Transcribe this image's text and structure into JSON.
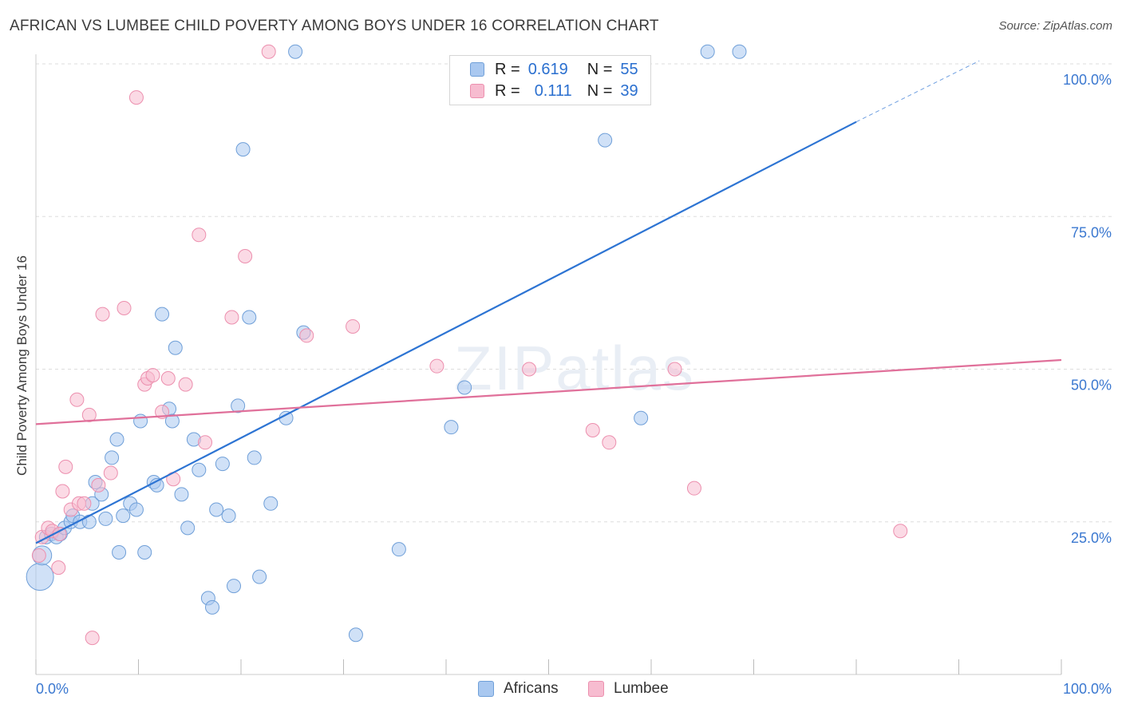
{
  "title": "AFRICAN VS LUMBEE CHILD POVERTY AMONG BOYS UNDER 16 CORRELATION CHART",
  "source": "Source: ZipAtlas.com",
  "watermark": "ZIPatlas",
  "legend_top": {
    "rows": [
      {
        "r_label": "R =",
        "r_value": "0.619",
        "n_label": "N =",
        "n_value": "55"
      },
      {
        "r_label": "R =",
        "r_value": "0.111",
        "n_label": "N =",
        "n_value": "39"
      }
    ]
  },
  "colors": {
    "africans_fill": "#a9c8f0",
    "africans_stroke": "#6f9fd8",
    "africans_line": "#2d74d3",
    "lumbee_fill": "#f7bcd0",
    "lumbee_stroke": "#ec8fae",
    "lumbee_line": "#e0709a",
    "tick_label": "#3b78d0",
    "grid": "#dddddd"
  },
  "chart_data": {
    "type": "scatter",
    "xlabel": "",
    "ylabel": "Child Poverty Among Boys Under 16",
    "xlim": [
      0,
      100
    ],
    "ylim": [
      0,
      102
    ],
    "x_tick_labels": [
      "0.0%",
      "100.0%"
    ],
    "y_ticks": [
      25,
      50,
      75,
      100
    ],
    "y_tick_labels": [
      "25.0%",
      "50.0%",
      "75.0%",
      "100.0%"
    ],
    "grid": true,
    "legend_position": "bottom",
    "series": [
      {
        "name": "Africans",
        "points": [
          [
            0.4,
            16,
            3
          ],
          [
            0.6,
            19.5,
            2
          ],
          [
            1.0,
            22.5,
            1
          ],
          [
            1.5,
            23,
            1
          ],
          [
            2.0,
            22.5,
            1
          ],
          [
            2.4,
            23,
            1
          ],
          [
            2.8,
            24,
            1
          ],
          [
            3.4,
            25,
            1
          ],
          [
            3.6,
            26,
            1
          ],
          [
            4.3,
            25,
            1
          ],
          [
            5.2,
            25,
            1
          ],
          [
            5.5,
            28,
            1
          ],
          [
            5.8,
            31.5,
            1
          ],
          [
            6.4,
            29.5,
            1
          ],
          [
            6.8,
            25.5,
            1
          ],
          [
            7.4,
            35.5,
            1
          ],
          [
            7.9,
            38.5,
            1
          ],
          [
            8.1,
            20,
            1
          ],
          [
            8.5,
            26,
            1
          ],
          [
            9.2,
            28,
            1
          ],
          [
            9.8,
            27,
            1
          ],
          [
            10.2,
            41.5,
            1
          ],
          [
            10.6,
            20,
            1
          ],
          [
            11.5,
            31.5,
            1
          ],
          [
            11.8,
            31,
            1
          ],
          [
            12.3,
            59,
            1
          ],
          [
            13.0,
            43.5,
            1
          ],
          [
            13.3,
            41.5,
            1
          ],
          [
            13.6,
            53.5,
            1
          ],
          [
            14.2,
            29.5,
            1
          ],
          [
            14.8,
            24,
            1
          ],
          [
            15.4,
            38.5,
            1
          ],
          [
            15.9,
            33.5,
            1
          ],
          [
            16.8,
            12.5,
            1
          ],
          [
            17.2,
            11,
            1
          ],
          [
            17.6,
            27,
            1
          ],
          [
            18.2,
            34.5,
            1
          ],
          [
            18.8,
            26,
            1
          ],
          [
            19.3,
            14.5,
            1
          ],
          [
            19.7,
            44,
            1
          ],
          [
            20.2,
            86,
            1
          ],
          [
            20.8,
            58.5,
            1
          ],
          [
            21.3,
            35.5,
            1
          ],
          [
            21.8,
            16,
            1
          ],
          [
            22.9,
            28,
            1
          ],
          [
            24.4,
            42,
            1
          ],
          [
            25.3,
            102,
            1
          ],
          [
            26.1,
            56,
            1
          ],
          [
            31.2,
            6.5,
            1
          ],
          [
            35.4,
            20.5,
            1
          ],
          [
            40.5,
            40.5,
            1
          ],
          [
            41.8,
            47,
            1
          ],
          [
            55.5,
            87.5,
            1
          ],
          [
            59.0,
            42,
            1
          ],
          [
            65.5,
            102,
            1
          ],
          [
            68.6,
            102,
            1
          ]
        ]
      },
      {
        "name": "Lumbee",
        "points": [
          [
            0.3,
            19.5,
            1
          ],
          [
            0.6,
            22.5,
            1
          ],
          [
            1.2,
            24,
            1
          ],
          [
            1.6,
            23.5,
            1
          ],
          [
            2.2,
            17.5,
            1
          ],
          [
            2.3,
            23,
            1
          ],
          [
            2.6,
            30,
            1
          ],
          [
            2.9,
            34,
            1
          ],
          [
            3.4,
            27,
            1
          ],
          [
            4.0,
            45,
            1
          ],
          [
            4.2,
            28,
            1
          ],
          [
            4.7,
            28,
            1
          ],
          [
            5.2,
            42.5,
            1
          ],
          [
            5.5,
            6,
            1
          ],
          [
            6.1,
            31,
            1
          ],
          [
            6.5,
            59,
            1
          ],
          [
            7.3,
            33,
            1
          ],
          [
            8.6,
            60,
            1
          ],
          [
            9.8,
            94.5,
            1
          ],
          [
            10.6,
            47.5,
            1
          ],
          [
            10.9,
            48.5,
            1
          ],
          [
            11.4,
            49,
            1
          ],
          [
            12.3,
            43,
            1
          ],
          [
            12.9,
            48.5,
            1
          ],
          [
            13.4,
            32,
            1
          ],
          [
            14.6,
            47.5,
            1
          ],
          [
            15.9,
            72,
            1
          ],
          [
            16.5,
            38,
            1
          ],
          [
            19.1,
            58.5,
            1
          ],
          [
            20.4,
            68.5,
            1
          ],
          [
            22.7,
            102,
            1
          ],
          [
            26.4,
            55.5,
            1
          ],
          [
            30.9,
            57,
            1
          ],
          [
            39.1,
            50.5,
            1
          ],
          [
            48.1,
            50,
            1
          ],
          [
            54.3,
            40,
            1
          ],
          [
            55.9,
            38,
            1
          ],
          [
            62.3,
            50,
            1
          ],
          [
            64.2,
            30.5,
            1
          ],
          [
            84.3,
            23.5,
            1
          ]
        ]
      }
    ],
    "trendlines": [
      {
        "series": "Africans",
        "x": [
          0,
          80
        ],
        "y": [
          21.5,
          90.5
        ],
        "dashed_extension": {
          "x": [
            80,
            92
          ],
          "y": [
            90.5,
            100.5
          ]
        }
      },
      {
        "series": "Lumbee",
        "x": [
          0,
          100
        ],
        "y": [
          41,
          51.5
        ]
      }
    ]
  },
  "bottom_legend": [
    {
      "label": "Africans"
    },
    {
      "label": "Lumbee"
    }
  ]
}
